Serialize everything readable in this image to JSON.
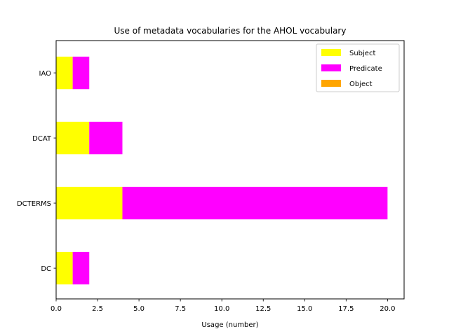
{
  "chart_data": {
    "type": "bar",
    "orientation": "horizontal",
    "stacked": true,
    "title": "Use of metadata vocabularies for the AHOL vocabulary",
    "xlabel": "Usage (number)",
    "ylabel": "",
    "categories": [
      "DC",
      "DCTERMS",
      "DCAT",
      "IAO"
    ],
    "series": [
      {
        "name": "Subject",
        "color": "#ffff00",
        "values": [
          1,
          4,
          2,
          1
        ]
      },
      {
        "name": "Predicate",
        "color": "#ff00ff",
        "values": [
          1,
          16,
          2,
          1
        ]
      },
      {
        "name": "Object",
        "color": "#ffa500",
        "values": [
          0,
          0,
          0,
          0
        ]
      }
    ],
    "xlim": [
      0,
      21
    ],
    "xticks": [
      "0.0",
      "2.5",
      "5.0",
      "7.5",
      "10.0",
      "12.5",
      "15.0",
      "17.5",
      "20.0"
    ],
    "xtick_values": [
      0,
      2.5,
      5,
      7.5,
      10,
      12.5,
      15,
      17.5,
      20
    ],
    "grid": false,
    "legend_position": "top-right"
  }
}
